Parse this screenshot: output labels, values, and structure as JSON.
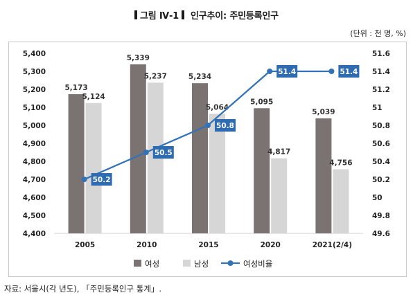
{
  "figure": {
    "label": "그림 Ⅳ-1",
    "unit": "(단위 : 천 명, %)",
    "source": "자료: 서울시(각 년도), 「주민등록인구 통계」."
  },
  "chart_data": {
    "type": "bar",
    "title": "인구추이: 주민등록인구",
    "categories": [
      "2005",
      "2010",
      "2015",
      "2020",
      "2021(2/4)"
    ],
    "series": [
      {
        "name": "여성",
        "type": "bar",
        "axis": "left",
        "color": "#7a7372",
        "values": [
          5173,
          5339,
          5234,
          5095,
          5039
        ],
        "value_labels": [
          "5,173",
          "5,339",
          "5,234",
          "5,095",
          "5,039"
        ]
      },
      {
        "name": "남성",
        "type": "bar",
        "axis": "left",
        "color": "#d6d6d6",
        "values": [
          5124,
          5237,
          5064,
          4817,
          4756
        ],
        "value_labels": [
          "5,124",
          "5,237",
          "5,064",
          "4,817",
          "4,756"
        ]
      },
      {
        "name": "여성비율",
        "type": "line",
        "axis": "right",
        "color": "#3372b6",
        "label_background": "#2d6bb2",
        "values": [
          50.2,
          50.5,
          50.8,
          51.4,
          51.4
        ],
        "value_labels": [
          "50.2",
          "50.5",
          "50.8",
          "51.4",
          "51.4"
        ]
      }
    ],
    "y_left": {
      "min": 4400,
      "max": 5400,
      "ticks": [
        "4,400",
        "4,500",
        "4,600",
        "4,700",
        "4,800",
        "4,900",
        "5,000",
        "5,100",
        "5,200",
        "5,300",
        "5,400"
      ]
    },
    "y_right": {
      "min": 49.6,
      "max": 51.6,
      "ticks": [
        "49.6",
        "49.8",
        "50",
        "50.2",
        "50.4",
        "50.6",
        "50.8",
        "51",
        "51.2",
        "51.4",
        "51.6"
      ]
    },
    "grid": false,
    "legend_position": "bottom"
  }
}
